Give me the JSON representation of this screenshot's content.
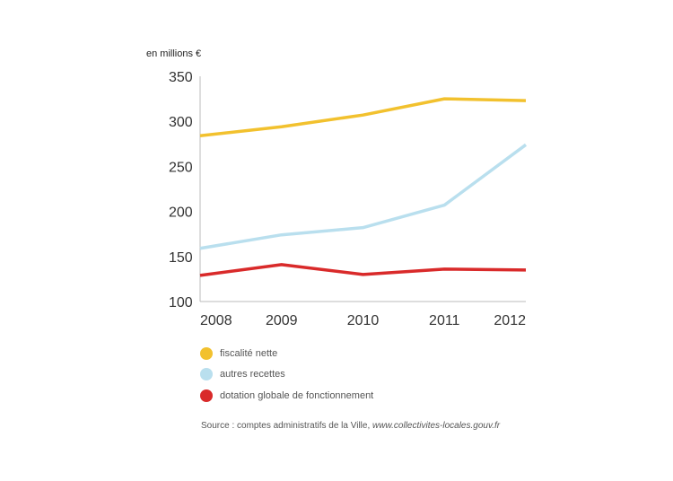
{
  "chart_data": {
    "type": "line",
    "unit_label": "en millions €",
    "categories": [
      "2008",
      "2009",
      "2010",
      "2011",
      "2012"
    ],
    "ylim": [
      100,
      350
    ],
    "yticks": [
      100,
      150,
      200,
      250,
      300,
      350
    ],
    "grid": false,
    "series": [
      {
        "name": "fiscalité nette",
        "color": "#f2c12e",
        "values": [
          284,
          294,
          307,
          325,
          323
        ]
      },
      {
        "name": "autres recettes",
        "color": "#b9dfee",
        "values": [
          159,
          174,
          182,
          207,
          274
        ]
      },
      {
        "name": "dotation globale de fonctionnement",
        "color": "#d92a2a",
        "values": [
          129,
          141,
          130,
          136,
          135
        ]
      }
    ]
  },
  "legend": {
    "items": [
      {
        "label": "fiscalité nette",
        "color": "#f2c12e"
      },
      {
        "label": "autres recettes",
        "color": "#b9dfee"
      },
      {
        "label": "dotation globale de fonctionnement",
        "color": "#d92a2a"
      }
    ]
  },
  "source": {
    "prefix": "Source : comptes administratifs de la Ville, ",
    "site": "www.collectivites-locales.gouv.fr"
  }
}
